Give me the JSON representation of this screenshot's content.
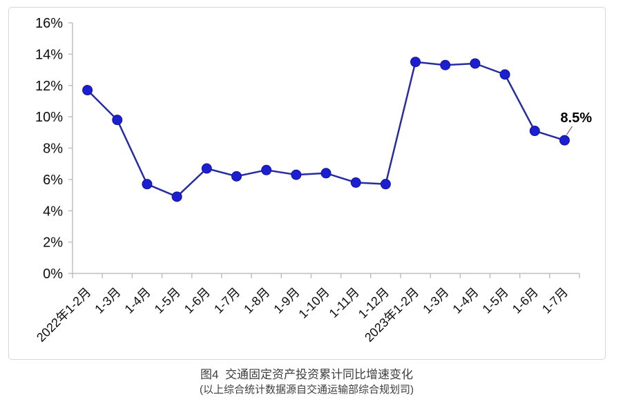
{
  "caption": {
    "title": "图4  交通固定资产投资累计同比增速变化",
    "source": "(以上综合统计数据源自交通运输部综合规划司)"
  },
  "chart_data": {
    "type": "line",
    "title": "",
    "xlabel": "",
    "ylabel": "",
    "categories": [
      "2022年1-2月",
      "1-3月",
      "1-4月",
      "1-5月",
      "1-6月",
      "1-7月",
      "1-8月",
      "1-9月",
      "1-10月",
      "1-11月",
      "1-12月",
      "2023年1-2月",
      "1-3月",
      "1-4月",
      "1-5月",
      "1-6月",
      "1-7月"
    ],
    "values": [
      11.7,
      9.8,
      5.7,
      4.9,
      6.7,
      6.2,
      6.6,
      6.3,
      6.4,
      5.8,
      5.7,
      13.5,
      13.3,
      13.4,
      12.7,
      9.1,
      8.5
    ],
    "ylim": [
      0,
      16
    ],
    "ytick_labels": [
      "0%",
      "2%",
      "4%",
      "6%",
      "8%",
      "10%",
      "12%",
      "14%",
      "16%"
    ],
    "grid": false,
    "legend": false,
    "annotation": {
      "text": "8.5%",
      "point_index": 16
    },
    "colors": {
      "line": "#252ca0",
      "marker": "#1b1fd0",
      "marker_edge": "#12149a",
      "axis": "#bfbfbf",
      "tick_label": "#0d0d0d",
      "annotation": "#000000",
      "leader": "#444444",
      "frame_border": "#d6d6d6"
    }
  }
}
